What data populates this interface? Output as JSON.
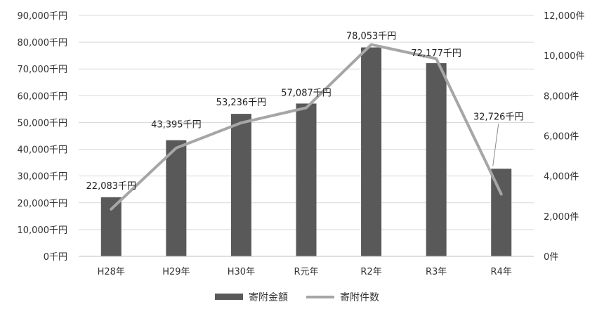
{
  "chart_data": {
    "type": "bar",
    "categories": [
      "H28年",
      "H29年",
      "H30年",
      "R元年",
      "R2年",
      "R3年",
      "R4年"
    ],
    "series": [
      {
        "name": "寄附金額",
        "type": "bar",
        "axis": "left",
        "values": [
          22083,
          43395,
          53236,
          57087,
          78053,
          72177,
          32726
        ],
        "labels": [
          "22,083千円",
          "43,395千円",
          "53,236千円",
          "57,087千円",
          "78,053千円",
          "72,177千円",
          "32,726千円"
        ],
        "color": "#595959"
      },
      {
        "name": "寄附件数",
        "type": "line",
        "axis": "right",
        "values": [
          2350,
          5400,
          6650,
          7400,
          10550,
          9850,
          3100
        ],
        "color": "#a6a6a6"
      }
    ],
    "y_left": {
      "lim": [
        0,
        90000
      ],
      "ticks": [
        0,
        10000,
        20000,
        30000,
        40000,
        50000,
        60000,
        70000,
        80000,
        90000
      ],
      "tick_labels": [
        "0千円",
        "10,000千円",
        "20,000千円",
        "30,000千円",
        "40,000千円",
        "50,000千円",
        "60,000千円",
        "70,000千円",
        "80,000千円",
        "90,000千円"
      ]
    },
    "y_right": {
      "lim": [
        0,
        12000
      ],
      "ticks": [
        0,
        2000,
        4000,
        6000,
        8000,
        10000,
        12000
      ],
      "tick_labels": [
        "0件",
        "2,000件",
        "4,000件",
        "6,000件",
        "8,000件",
        "10,000件",
        "12,000件"
      ]
    },
    "grid": true,
    "legend": "bottom",
    "title": "",
    "xlabel": "",
    "ylabel": ""
  }
}
